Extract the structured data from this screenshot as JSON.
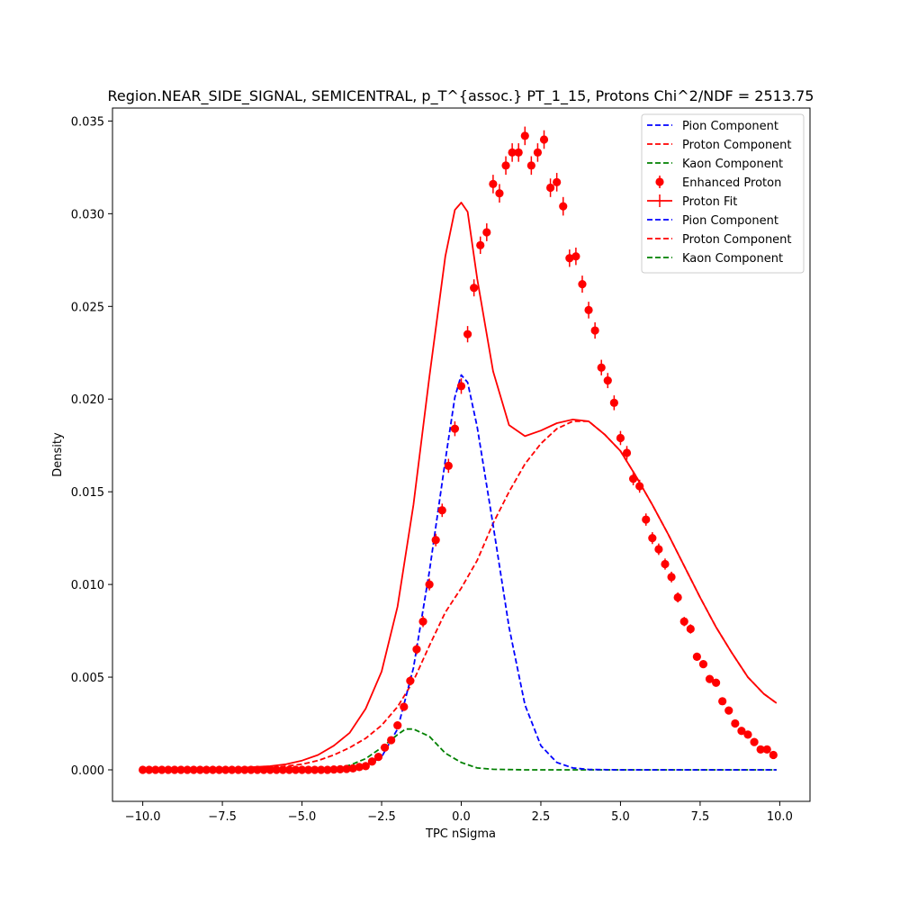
{
  "chart_data": {
    "type": "line",
    "title": "Region.NEAR_SIDE_SIGNAL, SEMICENTRAL, p_T^{assoc.} PT_1_15, Protons Chi^2/NDF = 2513.75",
    "xlabel": "TPC nSigma",
    "ylabel": "Density",
    "xlim": [
      -10.95,
      10.95
    ],
    "ylim": [
      -0.0017,
      0.0357
    ],
    "xticks": [
      -10.0,
      -7.5,
      -5.0,
      -2.5,
      0.0,
      2.5,
      5.0,
      7.5,
      10.0
    ],
    "xtick_labels": [
      "−10.0",
      "−7.5",
      "−5.0",
      "−2.5",
      "0.0",
      "2.5",
      "5.0",
      "7.5",
      "10.0"
    ],
    "yticks": [
      0.0,
      0.005,
      0.01,
      0.015,
      0.02,
      0.025,
      0.03,
      0.035
    ],
    "ytick_labels": [
      "0.000",
      "0.005",
      "0.010",
      "0.015",
      "0.020",
      "0.025",
      "0.030",
      "0.035"
    ],
    "grid": false,
    "legend_position": "top-right",
    "legend": [
      {
        "label": "Pion Component",
        "color": "#0000ff",
        "style": "dashed"
      },
      {
        "label": "Proton Component",
        "color": "#ff0000",
        "style": "dashed"
      },
      {
        "label": "Kaon Component",
        "color": "#008000",
        "style": "dashed"
      },
      {
        "label": "Enhanced Proton",
        "color": "#ff0000",
        "style": "errorbar"
      },
      {
        "label": "Proton Fit",
        "color": "#ff0000",
        "style": "solid"
      },
      {
        "label": "Pion Component",
        "color": "#0000ff",
        "style": "dashed"
      },
      {
        "label": "Proton Component",
        "color": "#ff0000",
        "style": "dashed"
      },
      {
        "label": "Kaon Component",
        "color": "#008000",
        "style": "dashed"
      }
    ],
    "series": [
      {
        "name": "Enhanced Proton",
        "kind": "errorbar",
        "color": "#ff0000",
        "x": [
          -10.0,
          -9.8,
          -9.6,
          -9.4,
          -9.2,
          -9.0,
          -8.8,
          -8.6,
          -8.4,
          -8.2,
          -8.0,
          -7.8,
          -7.6,
          -7.4,
          -7.2,
          -7.0,
          -6.8,
          -6.6,
          -6.4,
          -6.2,
          -6.0,
          -5.8,
          -5.6,
          -5.4,
          -5.2,
          -5.0,
          -4.8,
          -4.6,
          -4.4,
          -4.2,
          -4.0,
          -3.8,
          -3.6,
          -3.4,
          -3.2,
          -3.0,
          -2.8,
          -2.6,
          -2.4,
          -2.2,
          -2.0,
          -1.8,
          -1.6,
          -1.4,
          -1.2,
          -1.0,
          -0.8,
          -0.6,
          -0.4,
          -0.2,
          0.0,
          0.2,
          0.4,
          0.6,
          0.8,
          1.0,
          1.2,
          1.4,
          1.6,
          1.8,
          2.0,
          2.2,
          2.4,
          2.6,
          2.8,
          3.0,
          3.2,
          3.4,
          3.6,
          3.8,
          4.0,
          4.2,
          4.4,
          4.6,
          4.8,
          5.0,
          5.2,
          5.4,
          5.6,
          5.8,
          6.0,
          6.2,
          6.4,
          6.6,
          6.8,
          7.0,
          7.2,
          7.4,
          7.6,
          7.8,
          8.0,
          8.2,
          8.4,
          8.6,
          8.8,
          9.0,
          9.2,
          9.4,
          9.6,
          9.8
        ],
        "y": [
          0,
          0,
          0,
          0,
          0,
          0,
          0,
          0,
          0,
          0,
          0,
          0,
          0,
          0,
          0,
          0,
          0,
          0,
          0,
          0,
          0,
          0,
          0,
          0,
          0,
          0,
          0,
          0,
          0,
          0,
          2e-05,
          3e-05,
          5e-05,
          8e-05,
          0.00015,
          0.0002,
          0.00045,
          0.0007,
          0.0012,
          0.0016,
          0.0024,
          0.0034,
          0.0048,
          0.0065,
          0.008,
          0.01,
          0.0124,
          0.014,
          0.0164,
          0.0184,
          0.0207,
          0.0235,
          0.026,
          0.0283,
          0.029,
          0.0316,
          0.0311,
          0.0326,
          0.0333,
          0.0333,
          0.0342,
          0.0326,
          0.0333,
          0.034,
          0.0314,
          0.0317,
          0.0304,
          0.0276,
          0.0277,
          0.0262,
          0.0248,
          0.0237,
          0.0217,
          0.021,
          0.0198,
          0.0179,
          0.0171,
          0.0157,
          0.0153,
          0.0135,
          0.0125,
          0.0119,
          0.0111,
          0.0104,
          0.0093,
          0.008,
          0.0076,
          0.0061,
          0.0057,
          0.0049,
          0.0047,
          0.0037,
          0.0032,
          0.0025,
          0.0021,
          0.0019,
          0.0015,
          0.0011,
          0.0011,
          0.0008
        ],
        "yerr": [
          0,
          0,
          0,
          0,
          0,
          0,
          0,
          0,
          0,
          0,
          0,
          0,
          0,
          0,
          0,
          0,
          0,
          0,
          0,
          0,
          0,
          0,
          0,
          0,
          0,
          0,
          0,
          0,
          0,
          0,
          3e-05,
          3e-05,
          4e-05,
          5e-05,
          6e-05,
          8e-05,
          0.0001,
          0.00012,
          0.00015,
          0.00018,
          0.0002,
          0.00022,
          0.00025,
          0.00027,
          0.0003,
          0.00032,
          0.00034,
          0.00036,
          0.00038,
          0.0004,
          0.00042,
          0.00044,
          0.00046,
          0.00047,
          0.00048,
          0.0005,
          0.0005,
          0.0005,
          0.0005,
          0.0005,
          0.0005,
          0.0005,
          0.0005,
          0.0005,
          0.0005,
          0.0005,
          0.0005,
          0.00047,
          0.00047,
          0.00046,
          0.00045,
          0.00044,
          0.00042,
          0.00041,
          0.0004,
          0.00038,
          0.00037,
          0.00035,
          0.00035,
          0.00033,
          0.00032,
          0.00031,
          0.0003,
          0.00029,
          0.00027,
          0.00025,
          0.00025,
          0.00022,
          0.00021,
          0.0002,
          0.0002,
          0.00018,
          0.00016,
          0.00015,
          0.00014,
          0.00013,
          0.00012,
          0.0001,
          0.0001,
          9e-05
        ]
      },
      {
        "name": "Proton Fit",
        "kind": "line",
        "color": "#ff0000",
        "style": "solid",
        "x": [
          -10.0,
          -9.0,
          -8.0,
          -7.0,
          -6.0,
          -5.5,
          -5.0,
          -4.5,
          -4.0,
          -3.5,
          -3.0,
          -2.5,
          -2.0,
          -1.5,
          -1.0,
          -0.5,
          -0.2,
          0.0,
          0.2,
          0.5,
          1.0,
          1.5,
          2.0,
          2.5,
          3.0,
          3.5,
          4.0,
          4.5,
          5.0,
          5.5,
          6.0,
          6.5,
          7.0,
          7.5,
          8.0,
          8.5,
          9.0,
          9.5,
          9.9
        ],
        "y": [
          0,
          1e-05,
          3e-05,
          0.0001,
          0.0002,
          0.0003,
          0.0005,
          0.0008,
          0.0013,
          0.002,
          0.0033,
          0.0053,
          0.0088,
          0.0143,
          0.0212,
          0.0277,
          0.0302,
          0.0306,
          0.0301,
          0.0265,
          0.0215,
          0.0186,
          0.018,
          0.0183,
          0.0187,
          0.0189,
          0.0188,
          0.0181,
          0.0172,
          0.0158,
          0.0143,
          0.0127,
          0.011,
          0.0093,
          0.0077,
          0.0063,
          0.005,
          0.0041,
          0.0036
        ]
      },
      {
        "name": "Pion Component",
        "kind": "line",
        "color": "#0000ff",
        "style": "dashed",
        "x": [
          -10.0,
          -4.0,
          -3.5,
          -3.0,
          -2.5,
          -2.0,
          -1.5,
          -1.0,
          -0.5,
          -0.2,
          0.0,
          0.2,
          0.5,
          1.0,
          1.5,
          2.0,
          2.5,
          3.0,
          3.5,
          4.0,
          5.0,
          6.0,
          8.0,
          9.9
        ],
        "y": [
          0,
          0,
          5e-05,
          0.0002,
          0.0007,
          0.0022,
          0.0055,
          0.0107,
          0.0167,
          0.0201,
          0.0213,
          0.0209,
          0.0185,
          0.0132,
          0.0077,
          0.0035,
          0.0013,
          0.0004,
          0.0001,
          2e-05,
          0,
          0,
          0,
          0
        ]
      },
      {
        "name": "Proton Component",
        "kind": "line",
        "color": "#ff0000",
        "style": "dashed",
        "x": [
          -10.0,
          -8.0,
          -6.0,
          -5.0,
          -4.5,
          -4.0,
          -3.5,
          -3.0,
          -2.5,
          -2.0,
          -1.5,
          -1.0,
          -0.5,
          0.0,
          0.5,
          1.0,
          1.5,
          2.0,
          2.5,
          3.0,
          3.5,
          4.0,
          4.5,
          5.0,
          5.5,
          6.0,
          6.5,
          7.0,
          7.5,
          8.0,
          8.5,
          9.0,
          9.5,
          9.9
        ],
        "y": [
          0,
          1e-05,
          0.0001,
          0.0003,
          0.0005,
          0.0008,
          0.0012,
          0.0017,
          0.0024,
          0.0034,
          0.0048,
          0.0067,
          0.0085,
          0.0098,
          0.0113,
          0.0133,
          0.015,
          0.0165,
          0.0176,
          0.0184,
          0.0188,
          0.0188,
          0.0181,
          0.0172,
          0.0158,
          0.0143,
          0.0127,
          0.011,
          0.0093,
          0.0077,
          0.0063,
          0.005,
          0.0041,
          0.0036
        ]
      },
      {
        "name": "Kaon Component",
        "kind": "line",
        "color": "#008000",
        "style": "dashed",
        "x": [
          -10.0,
          -5.0,
          -4.5,
          -4.0,
          -3.5,
          -3.0,
          -2.5,
          -2.0,
          -1.75,
          -1.5,
          -1.0,
          -0.5,
          0.0,
          0.5,
          1.0,
          2.0,
          4.0,
          9.9
        ],
        "y": [
          0,
          0,
          2e-05,
          8e-05,
          0.00025,
          0.0006,
          0.0012,
          0.0019,
          0.0022,
          0.0022,
          0.0018,
          0.0009,
          0.0004,
          0.0001,
          3e-05,
          0,
          0,
          0
        ]
      }
    ]
  }
}
